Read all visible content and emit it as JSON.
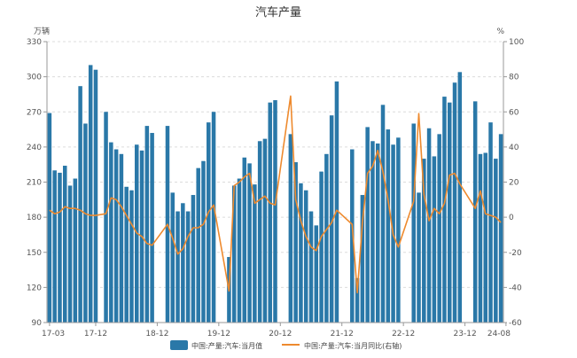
{
  "chart_data": {
    "type": "bar+line",
    "title": "汽车产量",
    "left_unit": "万辆",
    "right_unit": "%",
    "left_axis": {
      "min": 90,
      "max": 330,
      "ticks": [
        90,
        120,
        150,
        180,
        210,
        240,
        270,
        300,
        330
      ]
    },
    "right_axis": {
      "min": -60,
      "max": 100,
      "ticks": [
        -60,
        -40,
        -20,
        0,
        20,
        40,
        60,
        80,
        100
      ]
    },
    "x_tick_labels": [
      "17-03",
      "17-12",
      "18-12",
      "19-12",
      "20-12",
      "21-12",
      "22-12",
      "23-12",
      "24-08"
    ],
    "grid": "horizontal dashed",
    "legend_position": "bottom",
    "series": [
      {
        "name": "中国:产量:汽车:当月值",
        "type": "bar",
        "axis": "left",
        "color": "#2a78a8",
        "values": [
          {
            "x": "17-03",
            "y": 269
          },
          {
            "x": "17-04",
            "y": 220
          },
          {
            "x": "17-05",
            "y": 218
          },
          {
            "x": "17-06",
            "y": 224
          },
          {
            "x": "17-07",
            "y": 207
          },
          {
            "x": "17-08",
            "y": 213
          },
          {
            "x": "17-09",
            "y": 292
          },
          {
            "x": "17-10",
            "y": 260
          },
          {
            "x": "17-11",
            "y": 310
          },
          {
            "x": "17-12",
            "y": 306
          },
          {
            "x": "18-02",
            "y": 270
          },
          {
            "x": "18-03",
            "y": 244
          },
          {
            "x": "18-04",
            "y": 238
          },
          {
            "x": "18-05",
            "y": 234
          },
          {
            "x": "18-06",
            "y": 206
          },
          {
            "x": "18-07",
            "y": 203
          },
          {
            "x": "18-08",
            "y": 242
          },
          {
            "x": "18-09",
            "y": 237
          },
          {
            "x": "18-10",
            "y": 258
          },
          {
            "x": "18-11",
            "y": 252
          },
          {
            "x": "19-02",
            "y": 258
          },
          {
            "x": "19-03",
            "y": 201
          },
          {
            "x": "19-04",
            "y": 185
          },
          {
            "x": "19-05",
            "y": 192
          },
          {
            "x": "19-06",
            "y": 185
          },
          {
            "x": "19-07",
            "y": 199
          },
          {
            "x": "19-08",
            "y": 222
          },
          {
            "x": "19-09",
            "y": 228
          },
          {
            "x": "19-10",
            "y": 261
          },
          {
            "x": "19-11",
            "y": 270
          },
          {
            "x": "20-02",
            "y": 146
          },
          {
            "x": "20-03",
            "y": 207
          },
          {
            "x": "20-04",
            "y": 213
          },
          {
            "x": "20-05",
            "y": 231
          },
          {
            "x": "20-06",
            "y": 226
          },
          {
            "x": "20-07",
            "y": 208
          },
          {
            "x": "20-08",
            "y": 245
          },
          {
            "x": "20-09",
            "y": 247
          },
          {
            "x": "20-10",
            "y": 278
          },
          {
            "x": "20-11",
            "y": 280
          },
          {
            "x": "21-02",
            "y": 251
          },
          {
            "x": "21-03",
            "y": 227
          },
          {
            "x": "21-04",
            "y": 209
          },
          {
            "x": "21-05",
            "y": 203
          },
          {
            "x": "21-06",
            "y": 185
          },
          {
            "x": "21-07",
            "y": 173
          },
          {
            "x": "21-08",
            "y": 219
          },
          {
            "x": "21-09",
            "y": 234
          },
          {
            "x": "21-10",
            "y": 267
          },
          {
            "x": "21-11",
            "y": 296
          },
          {
            "x": "22-02",
            "y": 238
          },
          {
            "x": "22-03",
            "y": 128
          },
          {
            "x": "22-04",
            "y": 199
          },
          {
            "x": "22-05",
            "y": 257
          },
          {
            "x": "22-06",
            "y": 245
          },
          {
            "x": "22-07",
            "y": 243
          },
          {
            "x": "22-08",
            "y": 276
          },
          {
            "x": "22-09",
            "y": 255
          },
          {
            "x": "22-10",
            "y": 242
          },
          {
            "x": "22-11",
            "y": 248
          },
          {
            "x": "23-02",
            "y": 260
          },
          {
            "x": "23-03",
            "y": 201
          },
          {
            "x": "23-04",
            "y": 230
          },
          {
            "x": "23-05",
            "y": 256
          },
          {
            "x": "23-06",
            "y": 232
          },
          {
            "x": "23-07",
            "y": 251
          },
          {
            "x": "23-08",
            "y": 283
          },
          {
            "x": "23-09",
            "y": 278
          },
          {
            "x": "23-10",
            "y": 295
          },
          {
            "x": "23-11",
            "y": 304
          },
          {
            "x": "24-02",
            "y": 279
          },
          {
            "x": "24-03",
            "y": 234
          },
          {
            "x": "24-04",
            "y": 235
          },
          {
            "x": "24-05",
            "y": 261
          },
          {
            "x": "24-06",
            "y": 230
          },
          {
            "x": "24-07",
            "y": 251
          }
        ]
      },
      {
        "name": "中国:产量:汽车:当月同比(右轴)",
        "type": "line",
        "axis": "right",
        "color": "#ee8a2e",
        "values": [
          {
            "x": "17-03",
            "y": 4
          },
          {
            "x": "17-04",
            "y": 2
          },
          {
            "x": "17-05",
            "y": 3
          },
          {
            "x": "17-06",
            "y": 6
          },
          {
            "x": "17-07",
            "y": 5
          },
          {
            "x": "17-08",
            "y": 5
          },
          {
            "x": "17-09",
            "y": 4
          },
          {
            "x": "17-10",
            "y": 2
          },
          {
            "x": "17-11",
            "y": 1
          },
          {
            "x": "17-12",
            "y": 1
          },
          {
            "x": "18-02",
            "y": 2
          },
          {
            "x": "18-03",
            "y": 11
          },
          {
            "x": "18-04",
            "y": 10
          },
          {
            "x": "18-05",
            "y": 6
          },
          {
            "x": "18-06",
            "y": 1
          },
          {
            "x": "18-07",
            "y": -4
          },
          {
            "x": "18-08",
            "y": -9
          },
          {
            "x": "18-09",
            "y": -11
          },
          {
            "x": "18-10",
            "y": -15
          },
          {
            "x": "18-11",
            "y": -16
          },
          {
            "x": "19-02",
            "y": -4
          },
          {
            "x": "19-03",
            "y": -12
          },
          {
            "x": "19-04",
            "y": -21
          },
          {
            "x": "19-05",
            "y": -18
          },
          {
            "x": "19-06",
            "y": -11
          },
          {
            "x": "19-07",
            "y": -6
          },
          {
            "x": "19-08",
            "y": -6
          },
          {
            "x": "19-09",
            "y": -4
          },
          {
            "x": "19-10",
            "y": 3
          },
          {
            "x": "19-11",
            "y": 7
          },
          {
            "x": "20-02",
            "y": -42
          },
          {
            "x": "20-03",
            "y": 18
          },
          {
            "x": "20-04",
            "y": 20
          },
          {
            "x": "20-05",
            "y": 23
          },
          {
            "x": "20-06",
            "y": 25
          },
          {
            "x": "20-07",
            "y": 8
          },
          {
            "x": "20-08",
            "y": 10
          },
          {
            "x": "20-09",
            "y": 12
          },
          {
            "x": "20-10",
            "y": 8
          },
          {
            "x": "20-11",
            "y": 7
          },
          {
            "x": "21-02",
            "y": 69
          },
          {
            "x": "21-03",
            "y": 10
          },
          {
            "x": "21-04",
            "y": -2
          },
          {
            "x": "21-05",
            "y": -11
          },
          {
            "x": "21-06",
            "y": -17
          },
          {
            "x": "21-07",
            "y": -19
          },
          {
            "x": "21-08",
            "y": -11
          },
          {
            "x": "21-09",
            "y": -7
          },
          {
            "x": "21-10",
            "y": -3
          },
          {
            "x": "21-11",
            "y": 4
          },
          {
            "x": "22-02",
            "y": -4
          },
          {
            "x": "22-03",
            "y": -43
          },
          {
            "x": "22-04",
            "y": -3
          },
          {
            "x": "22-05",
            "y": 25
          },
          {
            "x": "22-06",
            "y": 29
          },
          {
            "x": "22-07",
            "y": 38
          },
          {
            "x": "22-08",
            "y": 26
          },
          {
            "x": "22-09",
            "y": 10
          },
          {
            "x": "22-10",
            "y": -10
          },
          {
            "x": "22-11",
            "y": -17
          },
          {
            "x": "23-02",
            "y": 9
          },
          {
            "x": "23-03",
            "y": 59
          },
          {
            "x": "23-04",
            "y": 13
          },
          {
            "x": "23-05",
            "y": -2
          },
          {
            "x": "23-06",
            "y": 5
          },
          {
            "x": "23-07",
            "y": 2
          },
          {
            "x": "23-08",
            "y": 8
          },
          {
            "x": "23-09",
            "y": 24
          },
          {
            "x": "23-10",
            "y": 25
          },
          {
            "x": "23-11",
            "y": 19
          },
          {
            "x": "24-02",
            "y": 5
          },
          {
            "x": "24-03",
            "y": 15
          },
          {
            "x": "24-04",
            "y": 2
          },
          {
            "x": "24-05",
            "y": 1
          },
          {
            "x": "24-06",
            "y": 0
          },
          {
            "x": "24-07",
            "y": -3
          }
        ]
      }
    ]
  }
}
